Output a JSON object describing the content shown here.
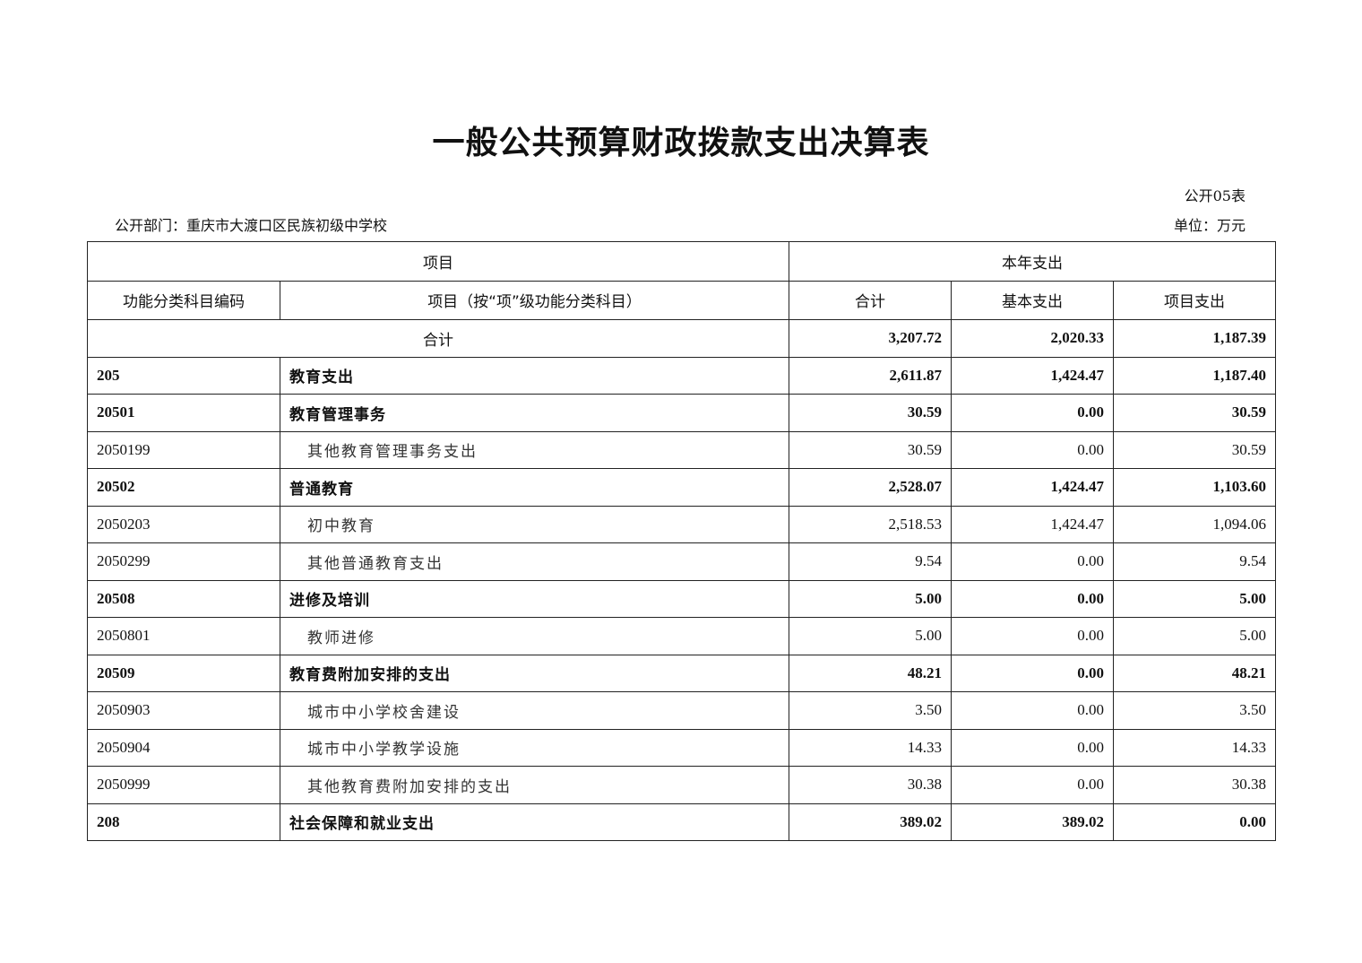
{
  "title": "一般公共预算财政拨款支出决算表",
  "form_no": "公开05表",
  "department": "公开部门：重庆市大渡口区民族初级中学校",
  "unit": "单位：万元",
  "header": {
    "group_item": "项目",
    "group_year": "本年支出",
    "col_code": "功能分类科目编码",
    "col_name": "项目（按“项”级功能分类科目）",
    "col_total": "合计",
    "col_basic": "基本支出",
    "col_project": "项目支出"
  },
  "total_row": {
    "label": "合计",
    "total": "3,207.72",
    "basic": "2,020.33",
    "project": "1,187.39"
  },
  "rows": [
    {
      "code": "205",
      "name": "教育支出",
      "total": "2,611.87",
      "basic": "1,424.47",
      "project": "1,187.40",
      "bold": true
    },
    {
      "code": "20501",
      "name": "教育管理事务",
      "total": "30.59",
      "basic": "0.00",
      "project": "30.59",
      "bold": true
    },
    {
      "code": "2050199",
      "name": "其他教育管理事务支出",
      "total": "30.59",
      "basic": "0.00",
      "project": "30.59",
      "bold": false
    },
    {
      "code": "20502",
      "name": "普通教育",
      "total": "2,528.07",
      "basic": "1,424.47",
      "project": "1,103.60",
      "bold": true
    },
    {
      "code": "2050203",
      "name": "初中教育",
      "total": "2,518.53",
      "basic": "1,424.47",
      "project": "1,094.06",
      "bold": false
    },
    {
      "code": "2050299",
      "name": "其他普通教育支出",
      "total": "9.54",
      "basic": "0.00",
      "project": "9.54",
      "bold": false
    },
    {
      "code": "20508",
      "name": "进修及培训",
      "total": "5.00",
      "basic": "0.00",
      "project": "5.00",
      "bold": true
    },
    {
      "code": "2050801",
      "name": "教师进修",
      "total": "5.00",
      "basic": "0.00",
      "project": "5.00",
      "bold": false
    },
    {
      "code": "20509",
      "name": "教育费附加安排的支出",
      "total": "48.21",
      "basic": "0.00",
      "project": "48.21",
      "bold": true
    },
    {
      "code": "2050903",
      "name": "城市中小学校舍建设",
      "total": "3.50",
      "basic": "0.00",
      "project": "3.50",
      "bold": false
    },
    {
      "code": "2050904",
      "name": "城市中小学教学设施",
      "total": "14.33",
      "basic": "0.00",
      "project": "14.33",
      "bold": false
    },
    {
      "code": "2050999",
      "name": "其他教育费附加安排的支出",
      "total": "30.38",
      "basic": "0.00",
      "project": "30.38",
      "bold": false
    },
    {
      "code": "208",
      "name": "社会保障和就业支出",
      "total": "389.02",
      "basic": "389.02",
      "project": "0.00",
      "bold": true
    }
  ]
}
